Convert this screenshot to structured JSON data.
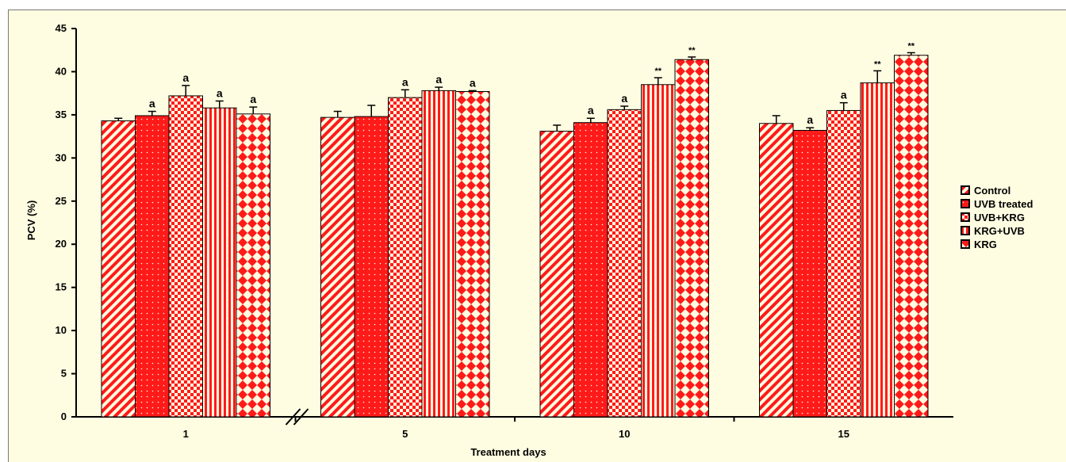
{
  "chart_data": {
    "type": "bar",
    "title": "",
    "xlabel": "Treatment days",
    "ylabel": "PCV (%)",
    "ylim": [
      0,
      45
    ],
    "yticks": [
      "0",
      "5",
      "10",
      "15",
      "20",
      "25",
      "30",
      "35",
      "40",
      "45"
    ],
    "categories": [
      "1",
      "5",
      "10",
      "15"
    ],
    "axis_break_between": [
      "1",
      "5"
    ],
    "grid": false,
    "legend_position": "right",
    "series": [
      {
        "name": "Control",
        "pattern": "diagonal-stripes",
        "color": "#ff1a1a",
        "values": [
          34.3,
          34.7,
          33.1,
          34.0
        ],
        "errors": [
          0.3,
          0.7,
          0.7,
          0.9
        ],
        "annotations": [
          "",
          "",
          "",
          ""
        ]
      },
      {
        "name": "UVB treated",
        "pattern": "dots",
        "color": "#ff1a1a",
        "values": [
          34.9,
          34.8,
          34.1,
          33.2
        ],
        "errors": [
          0.5,
          1.3,
          0.5,
          0.3
        ],
        "annotations": [
          "a",
          "",
          "a",
          "a"
        ]
      },
      {
        "name": "UVB+KRG",
        "pattern": "checkerboard",
        "color": "#ff1a1a",
        "values": [
          37.2,
          37.0,
          35.6,
          35.5
        ],
        "errors": [
          1.2,
          0.9,
          0.4,
          0.9
        ],
        "annotations": [
          "a",
          "a",
          "a",
          "a"
        ]
      },
      {
        "name": "KRG+UVB",
        "pattern": "vertical-stripes",
        "color": "#ff1a1a",
        "values": [
          35.8,
          37.8,
          38.5,
          38.7
        ],
        "errors": [
          0.8,
          0.4,
          0.8,
          1.4
        ],
        "annotations": [
          "a",
          "a",
          "**",
          "**"
        ]
      },
      {
        "name": "KRG",
        "pattern": "diamonds",
        "color": "#ff1a1a",
        "values": [
          35.1,
          37.7,
          41.4,
          41.9
        ],
        "errors": [
          0.8,
          0.1,
          0.3,
          0.3
        ],
        "annotations": [
          "a",
          "a",
          "**",
          "**"
        ]
      }
    ]
  },
  "colors": {
    "background": "#fffde1",
    "bar_fill": "#ff1a1a",
    "bar_light": "#fffde1",
    "axis": "#000000"
  }
}
